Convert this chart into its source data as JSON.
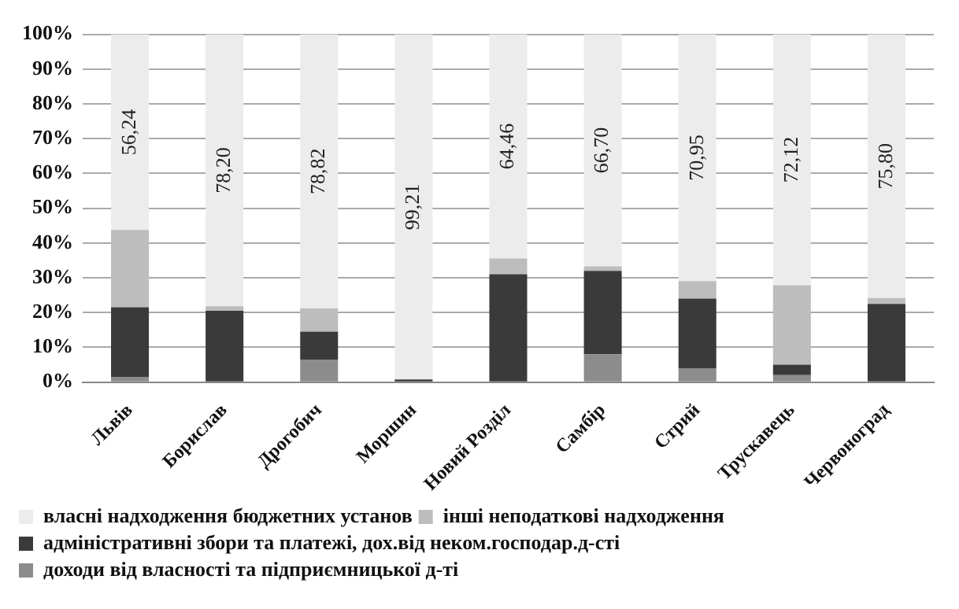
{
  "chart_data": {
    "type": "bar",
    "stacked": true,
    "categories": [
      "Львів",
      "Борислав",
      "Дрогобич",
      "Моршин",
      "Новий Розділ",
      "Самбір",
      "Стрий",
      "Трускавець",
      "Червоноград"
    ],
    "series": [
      {
        "name": "доходи від власності та підприємницької д-ті",
        "color": "#8c8c8c",
        "values": [
          1.5,
          0,
          6.5,
          0,
          0,
          8,
          4,
          2,
          0
        ]
      },
      {
        "name": "адміністративні збори та платежі, дох.від неком.господар.д-сті",
        "color": "#3a3a3a",
        "values": [
          20,
          20.5,
          8,
          0.79,
          31,
          24,
          20,
          3,
          22.5
        ]
      },
      {
        "name": "інші неподаткові надходження",
        "color": "#bdbdbd",
        "values": [
          22.26,
          1.3,
          6.68,
          0,
          4.54,
          1.3,
          5.05,
          22.88,
          1.7
        ]
      },
      {
        "name": "власні надходження бюджетних установ",
        "color": "#ececec",
        "values": [
          56.24,
          78.2,
          78.82,
          99.21,
          64.46,
          66.7,
          70.95,
          72.12,
          75.8
        ],
        "value_labels": [
          "56,24",
          "78,20",
          "78,82",
          "99,21",
          "64,46",
          "66,70",
          "70,95",
          "72,12",
          "75,80"
        ]
      }
    ],
    "ylim": [
      0,
      100
    ],
    "yticks": [
      {
        "value": 0,
        "label": "0%"
      },
      {
        "value": 10,
        "label": "10%"
      },
      {
        "value": 20,
        "label": "20%"
      },
      {
        "value": 30,
        "label": "30%"
      },
      {
        "value": 40,
        "label": "40%"
      },
      {
        "value": 50,
        "label": "50%"
      },
      {
        "value": 60,
        "label": "60%"
      },
      {
        "value": 70,
        "label": "70%"
      },
      {
        "value": 80,
        "label": "80%"
      },
      {
        "value": 90,
        "label": "90%"
      },
      {
        "value": 100,
        "label": "100%"
      }
    ],
    "grid": "y",
    "legend": "bottom"
  }
}
